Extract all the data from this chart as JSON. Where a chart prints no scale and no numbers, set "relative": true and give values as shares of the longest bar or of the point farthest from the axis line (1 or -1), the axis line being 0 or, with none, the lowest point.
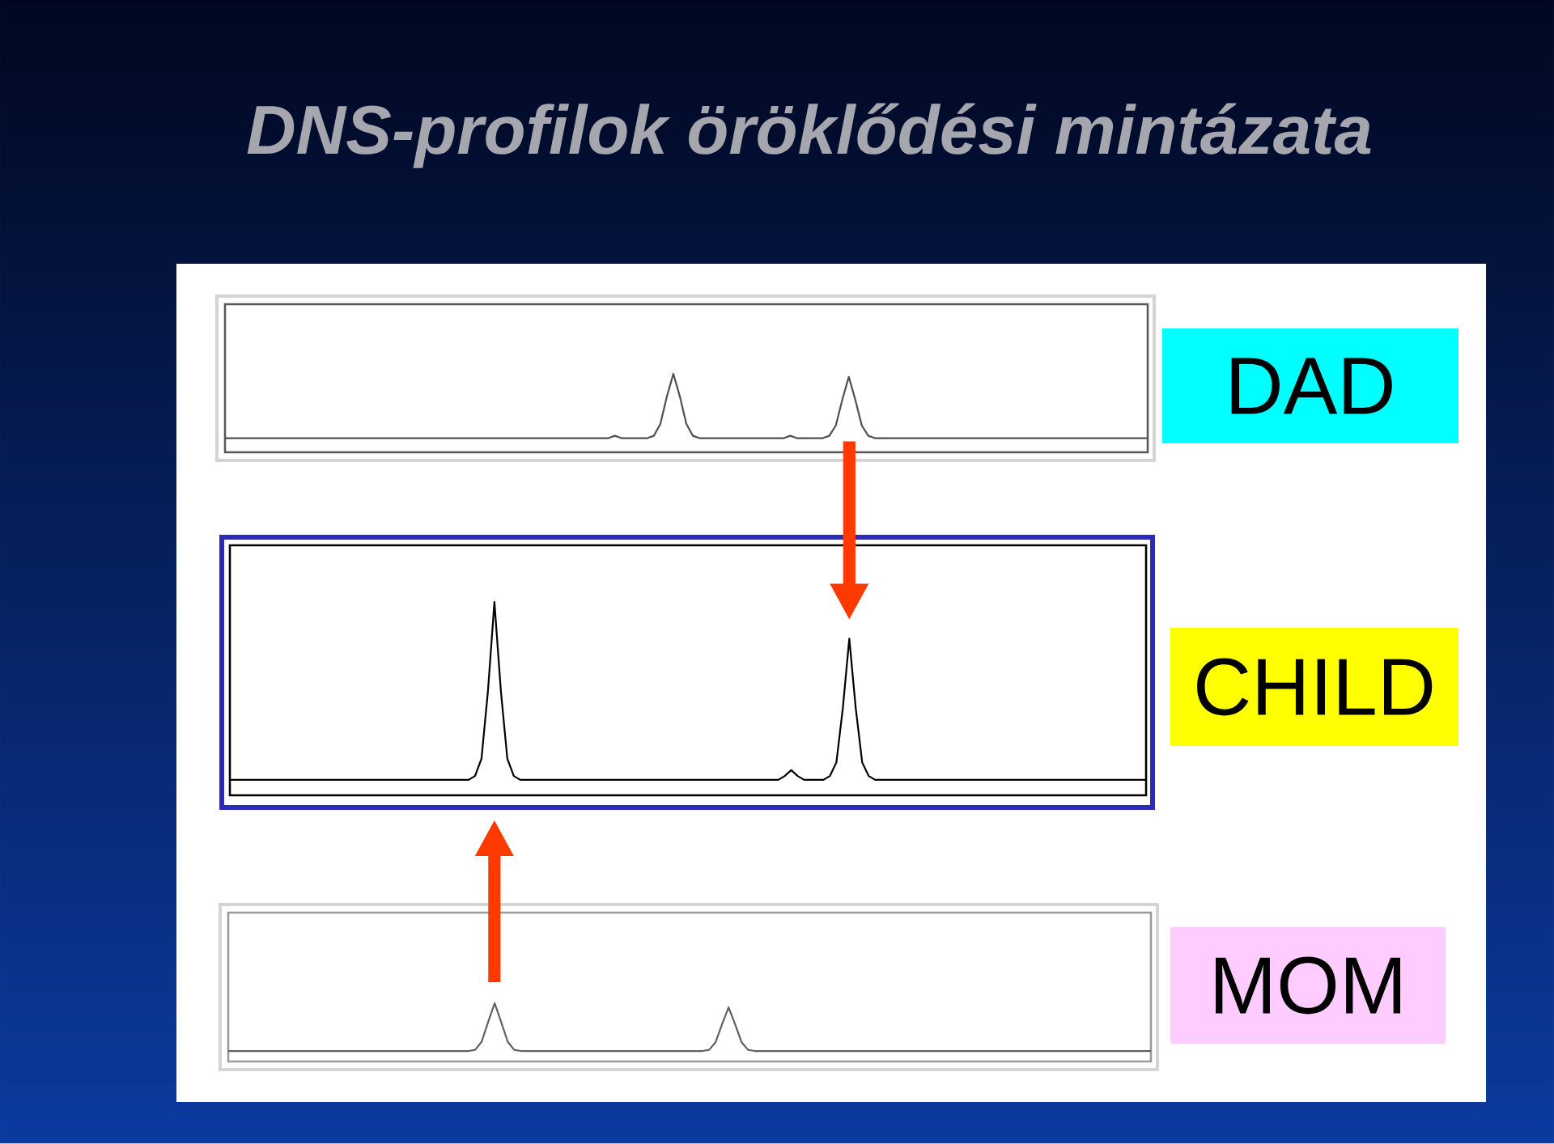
{
  "chart_data": [
    {
      "type": "line",
      "title": "DNS-profilok öröklődési mintázata",
      "relative": true,
      "categories": [
        null,
        null,
        null,
        null,
        null,
        null,
        null,
        null,
        null,
        null,
        null,
        null,
        null,
        null,
        null,
        null,
        null,
        null,
        null,
        null,
        null,
        null,
        null,
        null,
        null,
        null,
        null,
        null,
        null,
        null,
        null,
        null,
        null,
        null,
        null,
        null,
        null,
        null,
        null,
        null,
        null,
        null,
        null,
        null,
        null,
        null,
        null,
        null,
        null,
        null,
        null,
        null,
        null,
        null,
        null,
        null,
        null,
        null,
        null,
        null,
        null,
        null,
        null,
        null,
        null,
        null,
        null,
        null,
        null,
        null,
        null,
        null,
        null,
        null,
        null,
        null,
        null,
        null,
        null,
        null,
        null,
        null,
        null,
        null,
        null,
        null,
        null,
        null,
        null,
        null,
        null,
        null,
        null,
        null,
        null,
        null,
        null,
        null,
        null,
        null,
        null,
        null,
        null,
        null,
        null,
        null,
        null,
        null,
        null,
        null,
        null,
        null,
        null,
        null,
        null,
        null,
        null,
        null,
        null,
        null,
        null,
        null,
        null,
        null,
        null,
        null,
        null,
        null,
        null,
        null,
        null,
        null,
        null,
        null,
        null,
        null,
        null,
        null,
        null,
        null,
        null,
        null,
        null
      ],
      "series": [
        {
          "name": "DAD",
          "color": "#505050",
          "values": [
            0.18,
            0.18,
            0.18,
            0.18,
            0.18,
            0.18,
            0.18,
            0.18,
            0.18,
            0.18,
            0.18,
            0.18,
            0.18,
            0.18,
            0.18,
            0.18,
            0.18,
            0.18,
            0.18,
            0.18,
            0.18,
            0.18,
            0.18,
            0.18,
            0.18,
            0.18,
            0.18,
            0.18,
            0.18,
            0.18,
            0.18,
            0.18,
            0.18,
            0.18,
            0.18,
            0.18,
            0.18,
            0.18,
            0.18,
            0.18,
            0.18,
            0.18,
            0.18,
            0.18,
            0.18,
            0.18,
            0.18,
            0.18,
            0.18,
            0.18,
            0.18,
            0.18,
            0.18,
            0.18,
            0.18,
            0.18,
            0.18,
            0.18,
            0.18,
            0.18,
            0.21,
            0.18,
            0.18,
            0.18,
            0.18,
            0.18,
            0.21,
            0.36,
            0.71,
            1,
            0.71,
            0.36,
            0.21,
            0.18,
            0.18,
            0.18,
            0.18,
            0.18,
            0.18,
            0.18,
            0.18,
            0.18,
            0.18,
            0.18,
            0.18,
            0.18,
            0.18,
            0.21,
            0.18,
            0.18,
            0.18,
            0.18,
            0.18,
            0.21,
            0.34,
            0.67,
            0.96,
            0.67,
            0.34,
            0.21,
            0.18,
            0.18,
            0.18,
            0.18,
            0.18,
            0.18,
            0.18,
            0.18,
            0.18,
            0.18,
            0.18,
            0.18,
            0.18,
            0.18,
            0.18,
            0.18,
            0.18,
            0.18,
            0.18,
            0.18,
            0.18,
            0.18,
            0.18,
            0.18,
            0.18,
            0.18,
            0.18,
            0.18,
            0.18,
            0.18,
            0.18,
            0.18,
            0.18,
            0.18,
            0.18,
            0.18,
            0.18,
            0.18,
            0.18,
            0.18,
            0.18,
            0.18,
            0.18
          ]
        }
      ]
    },
    {
      "type": "line",
      "relative": true,
      "categories": [
        null,
        null,
        null,
        null,
        null,
        null,
        null,
        null,
        null,
        null,
        null,
        null,
        null,
        null,
        null,
        null,
        null,
        null,
        null,
        null,
        null,
        null,
        null,
        null,
        null,
        null,
        null,
        null,
        null,
        null,
        null,
        null,
        null,
        null,
        null,
        null,
        null,
        null,
        null,
        null,
        null,
        null,
        null,
        null,
        null,
        null,
        null,
        null,
        null,
        null,
        null,
        null,
        null,
        null,
        null,
        null,
        null,
        null,
        null,
        null,
        null,
        null,
        null,
        null,
        null,
        null,
        null,
        null,
        null,
        null,
        null,
        null,
        null,
        null,
        null,
        null,
        null,
        null,
        null,
        null,
        null,
        null,
        null,
        null,
        null,
        null,
        null,
        null,
        null,
        null,
        null,
        null,
        null,
        null,
        null,
        null,
        null,
        null,
        null,
        null,
        null,
        null,
        null,
        null,
        null,
        null,
        null,
        null,
        null,
        null,
        null,
        null,
        null,
        null,
        null,
        null,
        null,
        null,
        null,
        null,
        null,
        null,
        null,
        null,
        null,
        null,
        null,
        null,
        null,
        null,
        null,
        null,
        null,
        null,
        null,
        null,
        null,
        null,
        null,
        null,
        null,
        null,
        null
      ],
      "series": [
        {
          "name": "CHILD",
          "color": "#000000",
          "values": [
            0.08,
            0.08,
            0.08,
            0.08,
            0.08,
            0.08,
            0.08,
            0.08,
            0.08,
            0.08,
            0.08,
            0.08,
            0.08,
            0.08,
            0.08,
            0.08,
            0.08,
            0.08,
            0.08,
            0.08,
            0.08,
            0.08,
            0.08,
            0.08,
            0.08,
            0.08,
            0.08,
            0.08,
            0.08,
            0.08,
            0.08,
            0.08,
            0.08,
            0.08,
            0.08,
            0.08,
            0.08,
            0.08,
            0.1,
            0.19,
            0.54,
            1,
            0.54,
            0.19,
            0.1,
            0.08,
            0.08,
            0.08,
            0.08,
            0.08,
            0.08,
            0.08,
            0.08,
            0.08,
            0.08,
            0.08,
            0.08,
            0.08,
            0.08,
            0.08,
            0.08,
            0.08,
            0.08,
            0.08,
            0.08,
            0.08,
            0.08,
            0.08,
            0.08,
            0.08,
            0.08,
            0.08,
            0.08,
            0.08,
            0.08,
            0.08,
            0.08,
            0.08,
            0.08,
            0.08,
            0.08,
            0.08,
            0.08,
            0.08,
            0.08,
            0.08,
            0.1,
            0.13,
            0.1,
            0.08,
            0.08,
            0.08,
            0.08,
            0.1,
            0.17,
            0.45,
            0.81,
            0.45,
            0.17,
            0.1,
            0.08,
            0.08,
            0.08,
            0.08,
            0.08,
            0.08,
            0.08,
            0.08,
            0.08,
            0.08,
            0.08,
            0.08,
            0.08,
            0.08,
            0.08,
            0.08,
            0.08,
            0.08,
            0.08,
            0.08,
            0.08,
            0.08,
            0.08,
            0.08,
            0.08,
            0.08,
            0.08,
            0.08,
            0.08,
            0.08,
            0.08,
            0.08,
            0.08,
            0.08,
            0.08,
            0.08,
            0.08,
            0.08,
            0.08,
            0.08,
            0.08,
            0.08,
            0.08
          ]
        }
      ]
    },
    {
      "type": "line",
      "relative": true,
      "categories": [
        null,
        null,
        null,
        null,
        null,
        null,
        null,
        null,
        null,
        null,
        null,
        null,
        null,
        null,
        null,
        null,
        null,
        null,
        null,
        null,
        null,
        null,
        null,
        null,
        null,
        null,
        null,
        null,
        null,
        null,
        null,
        null,
        null,
        null,
        null,
        null,
        null,
        null,
        null,
        null,
        null,
        null,
        null,
        null,
        null,
        null,
        null,
        null,
        null,
        null,
        null,
        null,
        null,
        null,
        null,
        null,
        null,
        null,
        null,
        null,
        null,
        null,
        null,
        null,
        null,
        null,
        null,
        null,
        null,
        null,
        null,
        null,
        null,
        null,
        null,
        null,
        null,
        null,
        null,
        null,
        null,
        null,
        null,
        null,
        null,
        null,
        null,
        null,
        null,
        null,
        null,
        null,
        null,
        null,
        null,
        null,
        null,
        null,
        null,
        null,
        null,
        null,
        null,
        null,
        null,
        null,
        null,
        null,
        null,
        null,
        null,
        null,
        null,
        null,
        null,
        null,
        null,
        null,
        null,
        null,
        null,
        null,
        null,
        null,
        null,
        null,
        null,
        null,
        null,
        null,
        null,
        null,
        null,
        null,
        null,
        null,
        null,
        null,
        null,
        null,
        null,
        null,
        null
      ],
      "series": [
        {
          "name": "MOM",
          "color": "#606060",
          "values": [
            0.18,
            0.18,
            0.18,
            0.18,
            0.18,
            0.18,
            0.18,
            0.18,
            0.18,
            0.18,
            0.18,
            0.18,
            0.18,
            0.18,
            0.18,
            0.18,
            0.18,
            0.18,
            0.18,
            0.18,
            0.18,
            0.18,
            0.18,
            0.18,
            0.18,
            0.18,
            0.18,
            0.18,
            0.18,
            0.18,
            0.18,
            0.18,
            0.18,
            0.18,
            0.18,
            0.18,
            0.18,
            0.18,
            0.2,
            0.34,
            0.68,
            1,
            0.68,
            0.34,
            0.2,
            0.18,
            0.18,
            0.18,
            0.18,
            0.18,
            0.18,
            0.18,
            0.18,
            0.18,
            0.18,
            0.18,
            0.18,
            0.18,
            0.18,
            0.18,
            0.18,
            0.18,
            0.18,
            0.18,
            0.18,
            0.18,
            0.18,
            0.18,
            0.18,
            0.18,
            0.18,
            0.18,
            0.18,
            0.18,
            0.2,
            0.33,
            0.64,
            0.93,
            0.64,
            0.33,
            0.2,
            0.18,
            0.18,
            0.18,
            0.18,
            0.18,
            0.18,
            0.18,
            0.18,
            0.18,
            0.18,
            0.18,
            0.18,
            0.18,
            0.18,
            0.18,
            0.18,
            0.18,
            0.18,
            0.18,
            0.18,
            0.18,
            0.18,
            0.18,
            0.18,
            0.18,
            0.18,
            0.18,
            0.18,
            0.18,
            0.18,
            0.18,
            0.18,
            0.18,
            0.18,
            0.18,
            0.18,
            0.18,
            0.18,
            0.18,
            0.18,
            0.18,
            0.18,
            0.18,
            0.18,
            0.18,
            0.18,
            0.18,
            0.18,
            0.18,
            0.18,
            0.18,
            0.18,
            0.18,
            0.18,
            0.18,
            0.18,
            0.18,
            0.18,
            0.18,
            0.18,
            0.18,
            0.18
          ]
        }
      ]
    }
  ]
}
